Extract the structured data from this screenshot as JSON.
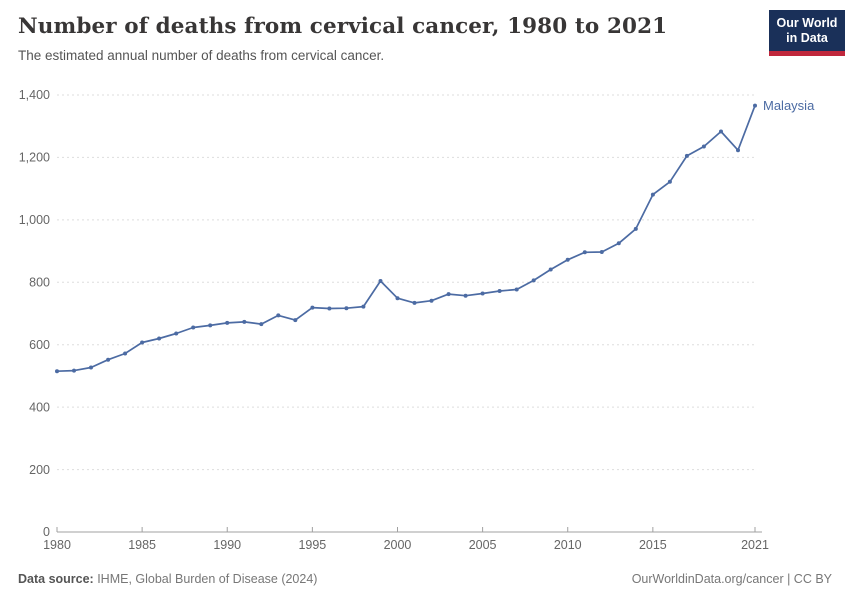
{
  "header": {
    "title": "Number of deaths from cervical cancer, 1980 to 2021",
    "subtitle": "The estimated annual number of deaths from cervical cancer."
  },
  "logo": {
    "line1": "Our World",
    "line2": "in Data",
    "bg_color": "#1a3059",
    "accent_color": "#c0273c"
  },
  "chart_data": {
    "type": "line",
    "title": "Number of deaths from cervical cancer, 1980 to 2021",
    "subtitle": "The estimated annual number of deaths from cervical cancer.",
    "x": [
      1980,
      1981,
      1982,
      1983,
      1984,
      1985,
      1986,
      1987,
      1988,
      1989,
      1990,
      1991,
      1992,
      1993,
      1994,
      1995,
      1996,
      1997,
      1998,
      1999,
      2000,
      2001,
      2002,
      2003,
      2004,
      2005,
      2006,
      2007,
      2008,
      2009,
      2010,
      2011,
      2012,
      2013,
      2014,
      2015,
      2016,
      2017,
      2018,
      2019,
      2020,
      2021
    ],
    "series": [
      {
        "name": "Malaysia",
        "color": "#4c6ba3",
        "values": [
          515,
          517,
          527,
          552,
          572,
          607,
          620,
          636,
          655,
          662,
          670,
          673,
          666,
          694,
          679,
          719,
          716,
          717,
          722,
          804,
          749,
          734,
          741,
          762,
          757,
          764,
          772,
          777,
          806,
          841,
          872,
          896,
          897,
          925,
          971,
          1081,
          1122,
          1205,
          1235,
          1283,
          1223,
          1366
        ]
      }
    ],
    "xlim": [
      1980,
      2021
    ],
    "ylim": [
      0,
      1400
    ],
    "x_ticks": [
      1980,
      1985,
      1990,
      1995,
      2000,
      2005,
      2010,
      2015,
      2021
    ],
    "y_ticks": [
      0,
      200,
      400,
      600,
      800,
      1000,
      1200,
      1400
    ],
    "y_tick_labels": [
      "0",
      "200",
      "400",
      "600",
      "800",
      "1,000",
      "1,200",
      "1,400"
    ],
    "grid": "horizontal dashed",
    "grid_color": "#dddddd",
    "axis_color": "#a0a0a0",
    "tick_label_color": "#666666",
    "legend": "end-of-line entity label"
  },
  "footer": {
    "source_label": "Data source:",
    "source_text": " IHME, Global Burden of Disease (2024)",
    "right_text": "OurWorldinData.org/cancer | CC BY"
  }
}
